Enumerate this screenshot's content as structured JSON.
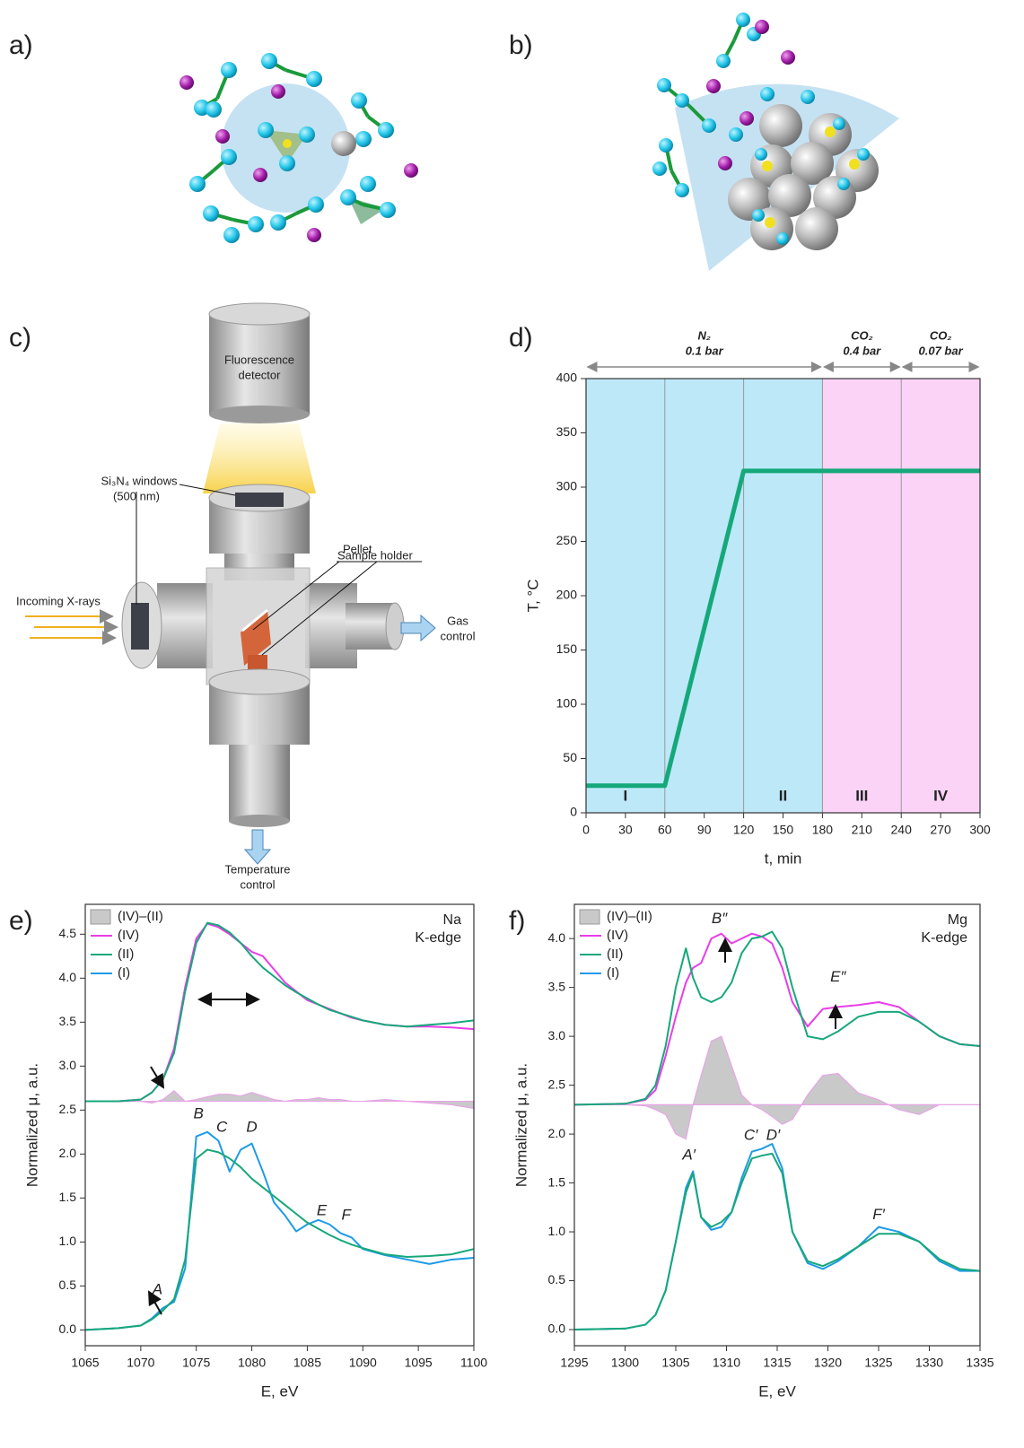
{
  "panels": {
    "a": "a)",
    "b": "b)",
    "c": "c)",
    "d": "d)",
    "e": "e)",
    "f": "f)"
  },
  "diagram": {
    "detector_label": [
      "Fluorescence",
      "detector"
    ],
    "windows_label": [
      "Si₃N₄ windows",
      "(500 nm)"
    ],
    "pellet_label": "Pellet",
    "holder_label": "Sample holder",
    "xray_label": "Incoming X-rays",
    "gas_label": [
      "Gas",
      "control"
    ],
    "temperature_label": [
      "Temperature",
      "control"
    ]
  },
  "chart_data": [
    {
      "type": "line",
      "x_label": "t, min",
      "y_label": "T, °C",
      "xlim": [
        0,
        300
      ],
      "ylim": [
        0,
        400
      ],
      "xticks": [
        0,
        30,
        60,
        90,
        120,
        150,
        180,
        210,
        240,
        270,
        300
      ],
      "yticks": [
        0,
        50,
        100,
        150,
        200,
        250,
        300,
        350,
        400
      ],
      "regions": [
        {
          "start": 0,
          "end": 180,
          "color": "#bde8f8"
        },
        {
          "start": 180,
          "end": 300,
          "color": "#fbd3f7"
        }
      ],
      "vlines": [
        60,
        120,
        180,
        240
      ],
      "phases": [
        {
          "label": "I",
          "x": 30
        },
        {
          "label": "II",
          "x": 150
        },
        {
          "label": "III",
          "x": 210
        },
        {
          "label": "IV",
          "x": 270
        }
      ],
      "gas_annotations": [
        {
          "lines": [
            "N₂",
            "0.1 bar"
          ],
          "xrange": [
            0,
            180
          ]
        },
        {
          "lines": [
            "CO₂",
            "0.4 bar"
          ],
          "xrange": [
            180,
            240
          ]
        },
        {
          "lines": [
            "CO₂",
            "0.07 bar"
          ],
          "xrange": [
            240,
            300
          ]
        }
      ],
      "x": [
        0,
        60,
        120,
        300
      ],
      "series": [
        {
          "color": "#15a87a",
          "width": 5,
          "values": [
            25,
            25,
            315,
            315
          ]
        }
      ]
    },
    {
      "type": "line",
      "x_label": "E, eV",
      "y_label": "Normalized μ, a.u.",
      "xlim": [
        1065,
        1100
      ],
      "ylim": [
        -0.18,
        4.84
      ],
      "xticks": [
        1065,
        1070,
        1075,
        1080,
        1085,
        1090,
        1095,
        1100
      ],
      "yticks": [
        {
          "value": 0,
          "label": "0.0"
        },
        0.5,
        {
          "value": 1,
          "label": "1.0"
        },
        1.5,
        {
          "value": 2,
          "label": "2.0"
        },
        2.5,
        {
          "value": 3,
          "label": "3.0"
        },
        3.5,
        {
          "value": 4,
          "label": "4.0"
        },
        4.5
      ],
      "edge_label": [
        "Na",
        "K-edge"
      ],
      "labels": [
        {
          "text": "A",
          "x": 1071.5,
          "y": 0.45
        },
        {
          "text": "B",
          "x": 1075.2,
          "y": 2.45
        },
        {
          "text": "C",
          "x": 1077.3,
          "y": 2.3
        },
        {
          "text": "D",
          "x": 1080,
          "y": 2.3
        },
        {
          "text": "E",
          "x": 1086.3,
          "y": 1.35
        },
        {
          "text": "F",
          "x": 1088.5,
          "y": 1.3
        }
      ],
      "x": [
        1065,
        1068,
        1070,
        1071,
        1072,
        1073,
        1074,
        1075,
        1076,
        1077,
        1078,
        1079,
        1080,
        1081,
        1082,
        1083,
        1084,
        1085,
        1086,
        1087,
        1088,
        1089,
        1090,
        1092,
        1094,
        1096,
        1098,
        1100
      ],
      "series": [
        {
          "name": "(IV)–(II)",
          "color": "#c9c9c9",
          "edge_color": "#e8a4e8",
          "baseline": 2.6,
          "values": [
            2.6,
            2.6,
            2.6,
            2.58,
            2.62,
            2.72,
            2.6,
            2.62,
            2.65,
            2.68,
            2.68,
            2.66,
            2.7,
            2.66,
            2.62,
            2.6,
            2.62,
            2.62,
            2.64,
            2.62,
            2.62,
            2.6,
            2.6,
            2.62,
            2.6,
            2.58,
            2.56,
            2.52
          ]
        },
        {
          "name": "(IV)",
          "color": "#e83ee8",
          "width": 2,
          "values": [
            2.6,
            2.6,
            2.62,
            2.7,
            2.85,
            3.2,
            3.9,
            4.45,
            4.62,
            4.58,
            4.5,
            4.4,
            4.3,
            4.25,
            4.1,
            3.95,
            3.85,
            3.75,
            3.7,
            3.65,
            3.6,
            3.55,
            3.52,
            3.47,
            3.45,
            3.45,
            3.44,
            3.42
          ]
        },
        {
          "name": "(II)",
          "color": "#17a77b",
          "width": 2,
          "values": [
            2.6,
            2.6,
            2.62,
            2.7,
            2.85,
            3.15,
            3.85,
            4.4,
            4.63,
            4.6,
            4.52,
            4.4,
            4.25,
            4.12,
            4.02,
            3.92,
            3.84,
            3.77,
            3.7,
            3.64,
            3.6,
            3.56,
            3.52,
            3.47,
            3.45,
            3.47,
            3.49,
            3.52
          ]
        },
        {
          "name": "(I)",
          "color": "#1e9be6",
          "width": 2,
          "values": [
            0,
            0.02,
            0.05,
            0.13,
            0.25,
            0.32,
            0.7,
            2.2,
            2.25,
            2.15,
            1.8,
            2.05,
            2.12,
            1.8,
            1.45,
            1.3,
            1.12,
            1.2,
            1.25,
            1.2,
            1.1,
            1.05,
            0.92,
            0.85,
            0.8,
            0.75,
            0.8,
            0.82
          ]
        },
        {
          "color": "#17a77b",
          "width": 2,
          "values": [
            0,
            0.02,
            0.05,
            0.12,
            0.22,
            0.35,
            0.8,
            1.95,
            2.05,
            2.02,
            1.95,
            1.85,
            1.72,
            1.62,
            1.52,
            1.42,
            1.32,
            1.22,
            1.15,
            1.08,
            1.02,
            0.97,
            0.93,
            0.86,
            0.83,
            0.84,
            0.86,
            0.92
          ]
        }
      ]
    },
    {
      "type": "line",
      "x_label": "E, eV",
      "y_label": "Normalized μ, a.u.",
      "xlim": [
        1295,
        1335
      ],
      "ylim": [
        -0.165,
        4.35
      ],
      "xticks": [
        1295,
        1300,
        1305,
        1310,
        1315,
        1320,
        1325,
        1330,
        1335
      ],
      "yticks": [
        {
          "value": 0,
          "label": "0.0"
        },
        0.5,
        {
          "value": 1,
          "label": "1.0"
        },
        1.5,
        {
          "value": 2,
          "label": "2.0"
        },
        2.5,
        {
          "value": 3,
          "label": "3.0"
        },
        3.5,
        {
          "value": 4,
          "label": "4.0"
        }
      ],
      "edge_label": [
        "Mg",
        "K-edge"
      ],
      "labels": [
        {
          "text": "A′",
          "x": 1306.3,
          "y": 1.78
        },
        {
          "text": "B″",
          "x": 1309.3,
          "y": 4.2
        },
        {
          "text": "C′",
          "x": 1312.4,
          "y": 1.98
        },
        {
          "text": "D′",
          "x": 1314.6,
          "y": 1.98
        },
        {
          "text": "E″",
          "x": 1321,
          "y": 3.6
        },
        {
          "text": "F′",
          "x": 1325,
          "y": 1.17
        }
      ],
      "x": [
        1295,
        1300,
        1302,
        1303,
        1304,
        1305,
        1306,
        1306.7,
        1307.5,
        1308.5,
        1309.5,
        1310.5,
        1311.5,
        1312.5,
        1313.5,
        1314.5,
        1315.5,
        1316.5,
        1318,
        1319.5,
        1321,
        1323,
        1325,
        1327,
        1329,
        1331,
        1333,
        1335
      ],
      "series": [
        {
          "name": "(IV)–(II)",
          "color": "#c9c9c9",
          "edge_color": "#e8a4e8",
          "baseline": 2.3,
          "values": [
            2.3,
            2.3,
            2.29,
            2.25,
            2.2,
            2.0,
            1.95,
            2.3,
            2.6,
            2.95,
            3.0,
            2.7,
            2.4,
            2.3,
            2.25,
            2.18,
            2.1,
            2.15,
            2.4,
            2.6,
            2.62,
            2.42,
            2.35,
            2.25,
            2.2,
            2.3,
            2.3,
            2.3
          ]
        },
        {
          "name": "(IV)",
          "color": "#e83ee8",
          "width": 2,
          "values": [
            2.3,
            2.31,
            2.35,
            2.45,
            2.8,
            3.2,
            3.55,
            3.7,
            3.75,
            4.0,
            4.05,
            3.95,
            4.0,
            4.05,
            4.02,
            3.95,
            3.7,
            3.35,
            3.1,
            3.28,
            3.3,
            3.32,
            3.35,
            3.3,
            3.15,
            3.0,
            2.92,
            2.9
          ]
        },
        {
          "name": "(II)",
          "color": "#17a77b",
          "width": 2,
          "values": [
            2.3,
            2.31,
            2.36,
            2.5,
            2.9,
            3.5,
            3.9,
            3.6,
            3.4,
            3.35,
            3.4,
            3.55,
            3.85,
            4.0,
            4.02,
            4.07,
            3.9,
            3.5,
            3.0,
            2.97,
            3.05,
            3.2,
            3.25,
            3.25,
            3.15,
            3.0,
            2.92,
            2.9
          ]
        },
        {
          "name": "(I)",
          "color": "#1e9be6",
          "width": 2,
          "values": [
            0,
            0.01,
            0.05,
            0.15,
            0.4,
            0.9,
            1.45,
            1.62,
            1.15,
            1.02,
            1.05,
            1.2,
            1.55,
            1.82,
            1.85,
            1.9,
            1.65,
            1.0,
            0.68,
            0.62,
            0.7,
            0.85,
            1.05,
            1.0,
            0.9,
            0.7,
            0.6,
            0.6
          ]
        },
        {
          "color": "#17a77b",
          "width": 2,
          "values": [
            0,
            0.01,
            0.05,
            0.15,
            0.4,
            0.9,
            1.4,
            1.6,
            1.15,
            1.05,
            1.1,
            1.2,
            1.5,
            1.75,
            1.78,
            1.8,
            1.6,
            1.0,
            0.7,
            0.65,
            0.72,
            0.85,
            0.98,
            0.98,
            0.9,
            0.72,
            0.62,
            0.6
          ]
        }
      ]
    }
  ]
}
